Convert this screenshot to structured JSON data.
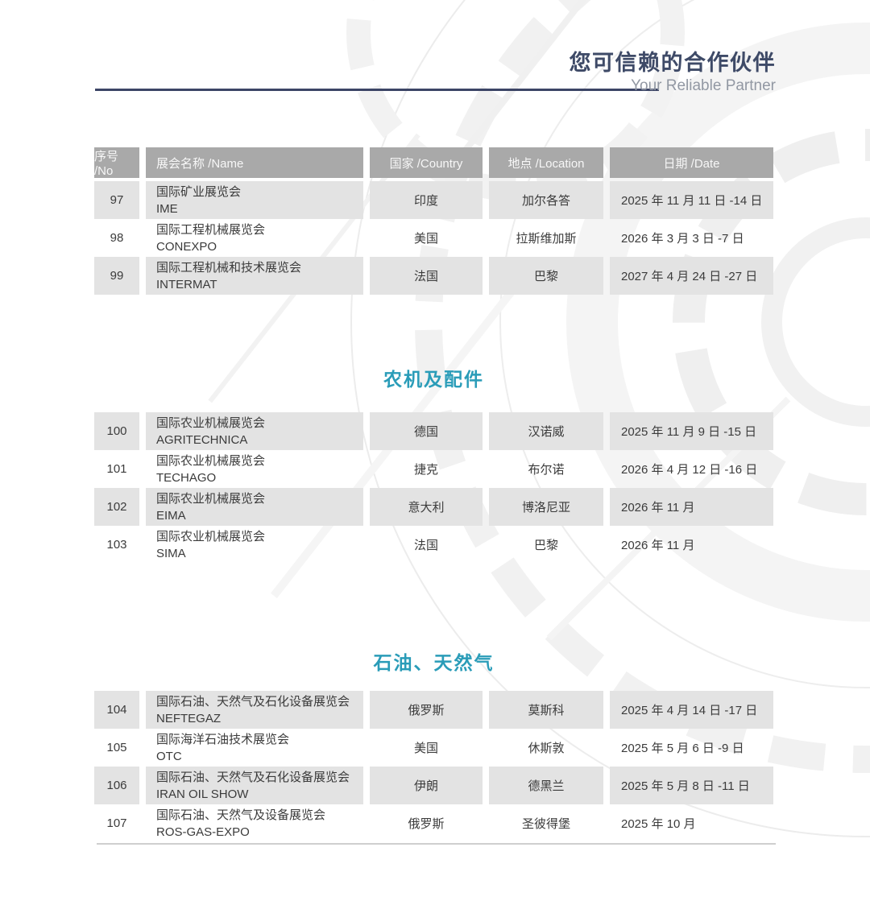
{
  "header": {
    "title_cn": "您可信赖的合作伙伴",
    "title_en": "Your Reliable Partner"
  },
  "table": {
    "columns": [
      "序号 /No",
      "展会名称 /Name",
      "国家 /Country",
      "地点 /Location",
      "日期 /Date"
    ]
  },
  "sections": [
    {
      "title": "",
      "rows": [
        {
          "no": "97",
          "name_cn": "国际矿业展览会",
          "name_en": "IME",
          "country": "印度",
          "location": "加尔各答",
          "date": "2025 年 11 月 11 日 -14 日"
        },
        {
          "no": "98",
          "name_cn": "国际工程机械展览会",
          "name_en": "CONEXPO",
          "country": "美国",
          "location": "拉斯维加斯",
          "date": "2026 年 3 月 3 日 -7 日"
        },
        {
          "no": "99",
          "name_cn": "国际工程机械和技术展览会",
          "name_en": "INTERMAT",
          "country": "法国",
          "location": "巴黎",
          "date": "2027 年 4 月 24 日 -27 日"
        }
      ]
    },
    {
      "title": "农机及配件",
      "rows": [
        {
          "no": "100",
          "name_cn": "国际农业机械展览会",
          "name_en": "AGRITECHNICA",
          "country": "德国",
          "location": "汉诺威",
          "date": "2025 年 11 月 9 日 -15 日"
        },
        {
          "no": "101",
          "name_cn": "国际农业机械展览会",
          "name_en": "TECHAGO",
          "country": "捷克",
          "location": "布尔诺",
          "date": "2026 年 4 月 12 日 -16 日"
        },
        {
          "no": "102",
          "name_cn": "国际农业机械展览会",
          "name_en": "EIMA",
          "country": "意大利",
          "location": "博洛尼亚",
          "date": "2026 年 11 月"
        },
        {
          "no": "103",
          "name_cn": "国际农业机械展览会",
          "name_en": "SIMA",
          "country": "法国",
          "location": "巴黎",
          "date": "2026 年 11 月"
        }
      ]
    },
    {
      "title": "石油、天然气",
      "rows": [
        {
          "no": "104",
          "name_cn": "国际石油、天然气及石化设备展览会",
          "name_en": "NEFTEGAZ",
          "country": "俄罗斯",
          "location": "莫斯科",
          "date": "2025 年 4 月 14 日 -17 日"
        },
        {
          "no": "105",
          "name_cn": "国际海洋石油技术展览会",
          "name_en": "OTC",
          "country": "美国",
          "location": "休斯敦",
          "date": "2025 年 5 月 6 日 -9 日"
        },
        {
          "no": "106",
          "name_cn": "国际石油、天然气及石化设备展览会",
          "name_en": "IRAN OIL SHOW",
          "country": "伊朗",
          "location": "德黑兰",
          "date": "2025 年 5 月 8 日 -11 日"
        },
        {
          "no": "107",
          "name_cn": "国际石油、天然气及设备展览会",
          "name_en": "ROS-GAS-EXPO",
          "country": "俄罗斯",
          "location": "圣彼得堡",
          "date": "2025 年 10 月"
        }
      ]
    }
  ],
  "colors": {
    "accent_teal": "#2a9cb8",
    "brand_navy": "#3e4a67",
    "header_gray": "#a9a9a9",
    "row_gray": "#e3e3e3"
  }
}
